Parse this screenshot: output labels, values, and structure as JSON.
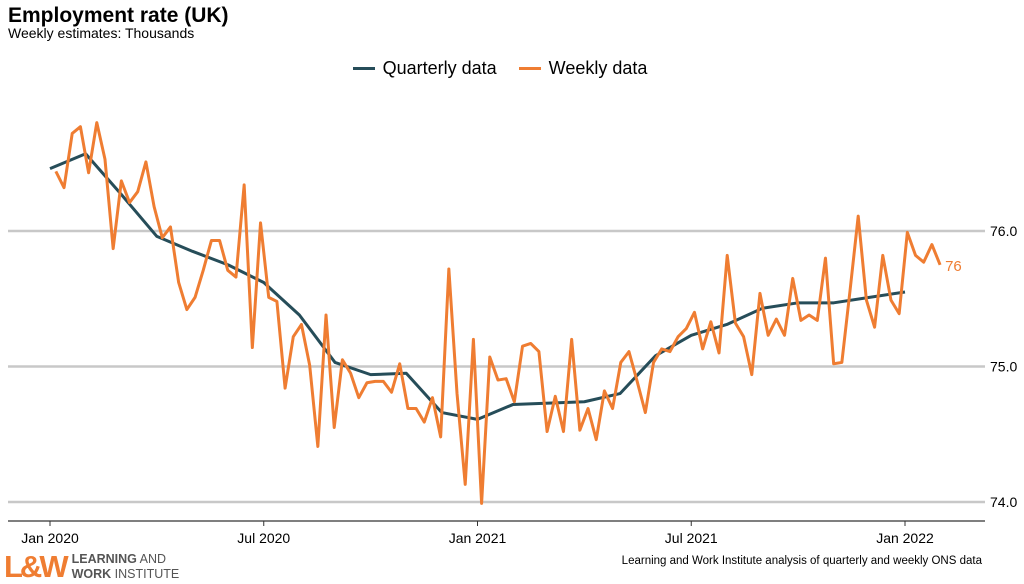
{
  "chart_data": {
    "type": "line",
    "title": "Employment rate (UK)",
    "subtitle": "Weekly estimates: Thousands",
    "xlabel": "",
    "ylabel": "",
    "ylim": [
      74.0,
      76.5
    ],
    "y_ticks": [
      "74.0",
      "75.0",
      "76.0"
    ],
    "y_tick_values": [
      74.0,
      75.0,
      76.0
    ],
    "x_ticks": [
      {
        "label": "Jan 2020",
        "month": 0
      },
      {
        "label": "Jul 2020",
        "month": 6
      },
      {
        "label": "Jan 2021",
        "month": 12
      },
      {
        "label": "Jul 2021",
        "month": 18
      },
      {
        "label": "Jan 2022",
        "month": 24
      }
    ],
    "grid": true,
    "legend_position": "top-center",
    "series": [
      {
        "name": "Quarterly data",
        "color": "#264d59",
        "x_unit": "months since Jan 2020",
        "x": [
          0,
          1,
          2,
          3,
          4,
          5,
          6,
          7,
          8,
          9,
          10,
          11,
          12,
          13,
          14,
          15,
          16,
          17,
          18,
          19,
          20,
          21,
          22,
          23,
          24
        ],
        "values": [
          76.46,
          76.57,
          76.27,
          75.96,
          75.85,
          75.75,
          75.62,
          75.38,
          75.03,
          74.94,
          74.95,
          74.66,
          74.61,
          74.72,
          74.73,
          74.74,
          74.8,
          75.08,
          75.23,
          75.31,
          75.43,
          75.47,
          75.47,
          75.51,
          75.55
        ]
      },
      {
        "name": "Weekly data",
        "color": "#ef7d32",
        "x_unit": "days since 1 Jan 2020",
        "start_day": 5,
        "step_days": 7,
        "values": [
          76.44,
          76.32,
          76.72,
          76.77,
          76.43,
          76.8,
          76.53,
          75.87,
          76.37,
          76.21,
          76.29,
          76.51,
          76.18,
          75.95,
          76.03,
          75.62,
          75.42,
          75.51,
          75.71,
          75.93,
          75.93,
          75.71,
          75.66,
          76.34,
          75.14,
          76.06,
          75.51,
          75.48,
          74.84,
          75.22,
          75.31,
          75.01,
          74.41,
          75.38,
          74.55,
          75.05,
          74.95,
          74.77,
          74.88,
          74.89,
          74.89,
          74.81,
          75.02,
          74.69,
          74.69,
          74.59,
          74.77,
          74.48,
          75.72,
          74.8,
          74.13,
          75.2,
          73.99,
          75.07,
          74.9,
          74.91,
          74.74,
          75.15,
          75.17,
          75.11,
          74.52,
          74.78,
          74.52,
          75.2,
          74.53,
          74.69,
          74.46,
          74.82,
          74.69,
          75.03,
          75.11,
          74.89,
          74.66,
          75.03,
          75.13,
          75.11,
          75.22,
          75.28,
          75.4,
          75.13,
          75.33,
          75.1,
          75.82,
          75.32,
          75.22,
          74.94,
          75.54,
          75.23,
          75.35,
          75.23,
          75.65,
          75.34,
          75.38,
          75.34,
          75.8,
          75.02,
          75.03,
          75.56,
          76.11,
          75.49,
          75.29,
          75.82,
          75.49,
          75.39,
          75.99,
          75.82,
          75.77,
          75.9,
          75.75
        ],
        "end_label": "76"
      }
    ],
    "source": "Learning and Work Institute analysis of quarterly and weekly ONS data",
    "logo": {
      "mark": "L&W",
      "line1_bold": "LEARNING",
      "line1_rest": " AND",
      "line2_bold": "WORK",
      "line2_rest": " INSTITUTE"
    }
  }
}
